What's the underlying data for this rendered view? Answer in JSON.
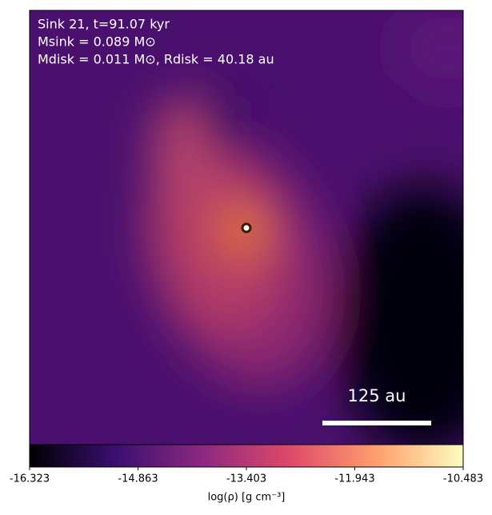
{
  "chart_data": {
    "type": "density-map",
    "annotations": [
      "Sink 21, t=91.07 kyr",
      "Msink = 0.089 M⊙",
      "Mdisk = 0.011 M⊙, Rdisk = 40.18 au"
    ],
    "scale_bar_label": "125 au",
    "colorbar": {
      "label": "log(ρ) [g cm⁻³]",
      "clim": [
        -16.323,
        -10.483
      ],
      "ticks": [
        -16.323,
        -14.863,
        -13.403,
        -11.943,
        -10.483
      ],
      "colors": [
        "#000004",
        "#3b0f6f",
        "#8c2981",
        "#de4968",
        "#fe9f6d",
        "#fcfdbf"
      ]
    }
  }
}
